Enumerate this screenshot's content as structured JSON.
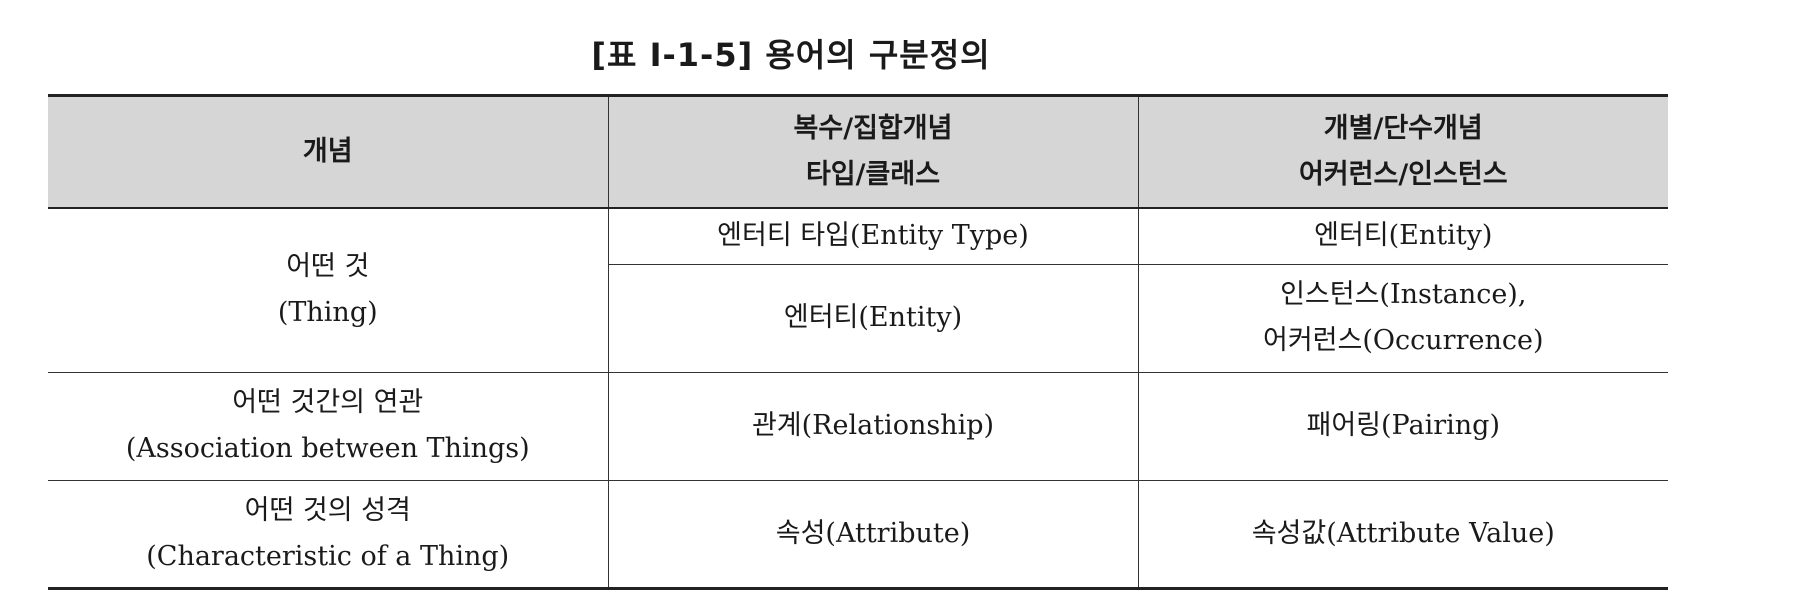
{
  "caption": "[표 Ⅰ-1-5] 용어의 구분정의",
  "headers": {
    "col1": "개념",
    "col2_line1": "복수/집합개념",
    "col2_line2": "타입/클래스",
    "col3_line1": "개별/단수개념",
    "col3_line2": "어커런스/인스턴스"
  },
  "rows": {
    "thing": {
      "concept_line1": "어떤 것",
      "concept_line2": "(Thing)",
      "a_plural": "엔터티 타입(Entity Type)",
      "a_single": "엔터티(Entity)",
      "b_plural": "엔터티(Entity)",
      "b_single_line1": "인스턴스(Instance),",
      "b_single_line2": "어커런스(Occurrence)"
    },
    "association": {
      "concept_line1": "어떤 것간의 연관",
      "concept_line2": "(Association between Things)",
      "plural": "관계(Relationship)",
      "single": "패어링(Pairing)"
    },
    "characteristic": {
      "concept_line1": "어떤 것의 성격",
      "concept_line2": "(Characteristic of a Thing)",
      "plural": "속성(Attribute)",
      "single": "속성값(Attribute Value)"
    }
  }
}
